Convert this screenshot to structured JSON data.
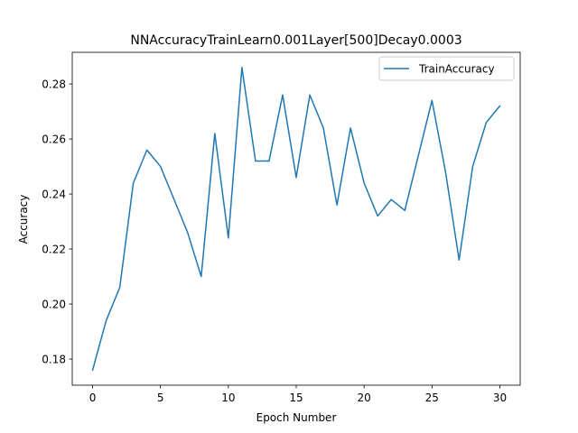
{
  "chart_data": {
    "type": "line",
    "title": "NNAccuracyTrainLearn0.001Layer[500]Decay0.0003",
    "xlabel": "Epoch Number",
    "ylabel": "Accuracy",
    "xlim": [
      -1.5,
      31.5
    ],
    "ylim": [
      0.1705,
      0.2915
    ],
    "xticks": [
      0,
      5,
      10,
      15,
      20,
      25,
      30
    ],
    "xtick_labels": [
      "0",
      "5",
      "10",
      "15",
      "20",
      "25",
      "30"
    ],
    "yticks": [
      0.18,
      0.2,
      0.22,
      0.24,
      0.26,
      0.28
    ],
    "ytick_labels": [
      "0.18",
      "0.20",
      "0.22",
      "0.24",
      "0.26",
      "0.28"
    ],
    "grid": false,
    "legend_position": "top-right",
    "series": [
      {
        "name": "TrainAccuracy",
        "color": "#1f77b4",
        "x": [
          0,
          1,
          2,
          3,
          4,
          5,
          6,
          7,
          8,
          9,
          10,
          11,
          12,
          13,
          14,
          15,
          16,
          17,
          18,
          19,
          20,
          21,
          22,
          23,
          24,
          25,
          26,
          27,
          28,
          29,
          30
        ],
        "values": [
          0.176,
          0.194,
          0.206,
          0.244,
          0.256,
          0.25,
          0.238,
          0.226,
          0.21,
          0.262,
          0.224,
          0.286,
          0.252,
          0.252,
          0.276,
          0.246,
          0.276,
          0.264,
          0.236,
          0.264,
          0.244,
          0.232,
          0.238,
          0.234,
          0.254,
          0.274,
          0.248,
          0.216,
          0.25,
          0.266,
          0.272
        ]
      }
    ]
  }
}
